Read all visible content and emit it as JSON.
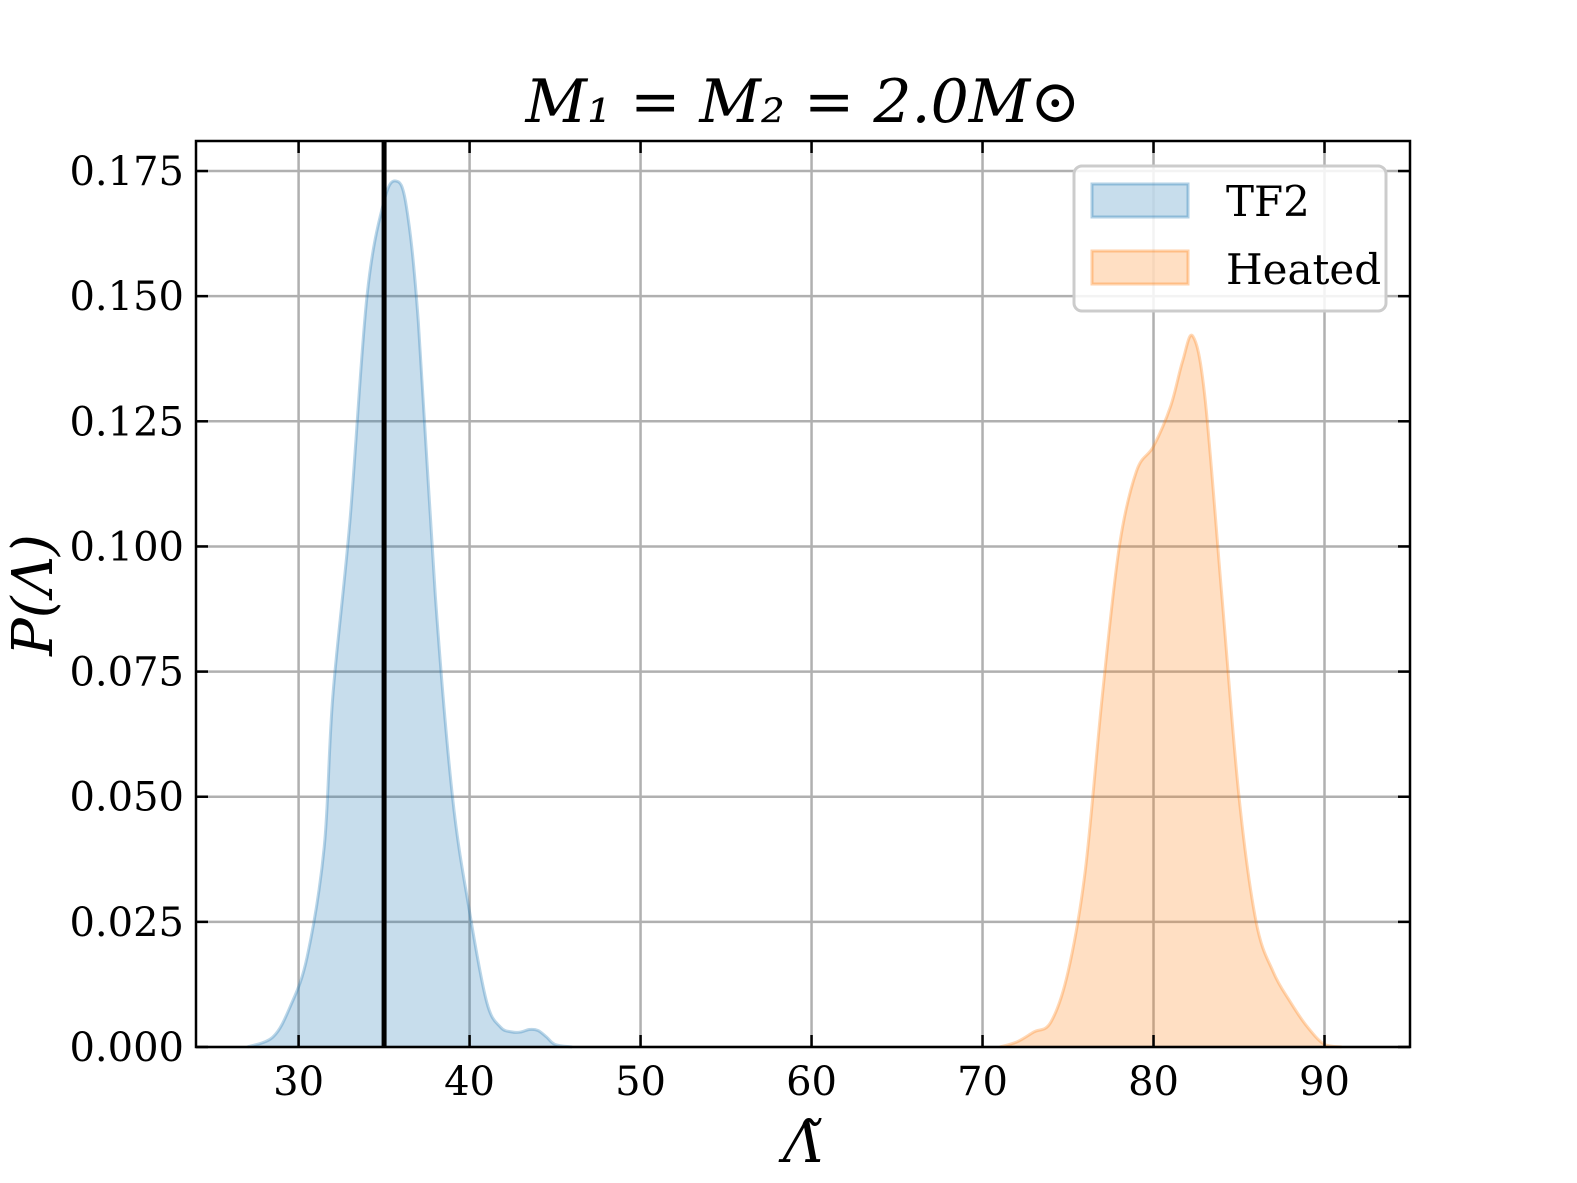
{
  "chart_data": {
    "type": "area",
    "title": "M₁ = M₂ = 2.0M⊙",
    "xlabel": "Λ̃",
    "ylabel": "P(Λ)",
    "xlim": [
      24,
      95
    ],
    "ylim": [
      0,
      0.181
    ],
    "x_ticks": [
      30,
      40,
      50,
      60,
      70,
      80,
      90
    ],
    "x_tick_labels": [
      "30",
      "40",
      "50",
      "60",
      "70",
      "80",
      "90"
    ],
    "y_ticks": [
      0,
      0.025,
      0.05,
      0.075,
      0.1,
      0.125,
      0.15,
      0.175
    ],
    "y_tick_labels": [
      "0.000",
      "0.025",
      "0.050",
      "0.075",
      "0.100",
      "0.125",
      "0.150",
      "0.175"
    ],
    "grid": true,
    "legend_position": "top-right",
    "reference_line": {
      "x": 35,
      "color": "#000000"
    },
    "series": [
      {
        "name": "TF2",
        "color": "#1f77b4",
        "x": [
          27,
          28.5,
          29.5,
          30.5,
          31.5,
          32,
          33,
          34,
          35,
          35.7,
          36.3,
          37,
          38,
          39,
          40,
          41,
          41.8,
          42.5,
          43,
          43.5,
          44,
          44.5,
          45,
          46
        ],
        "y": [
          0,
          0.002,
          0.008,
          0.018,
          0.04,
          0.07,
          0.105,
          0.15,
          0.169,
          0.173,
          0.168,
          0.145,
          0.09,
          0.05,
          0.027,
          0.009,
          0.004,
          0.003,
          0.003,
          0.0035,
          0.0033,
          0.002,
          0.0005,
          0
        ]
      },
      {
        "name": "Heated",
        "color": "#ff7f0e",
        "x": [
          71,
          72,
          73,
          74,
          75,
          76,
          77,
          78,
          79,
          80,
          81,
          81.7,
          82.3,
          83,
          84,
          85,
          86,
          87,
          88,
          89,
          90,
          91
        ],
        "y": [
          0,
          0.001,
          0.003,
          0.005,
          0.015,
          0.035,
          0.07,
          0.1,
          0.115,
          0.12,
          0.128,
          0.137,
          0.142,
          0.13,
          0.09,
          0.05,
          0.025,
          0.015,
          0.009,
          0.004,
          0.0005,
          0
        ]
      }
    ]
  }
}
